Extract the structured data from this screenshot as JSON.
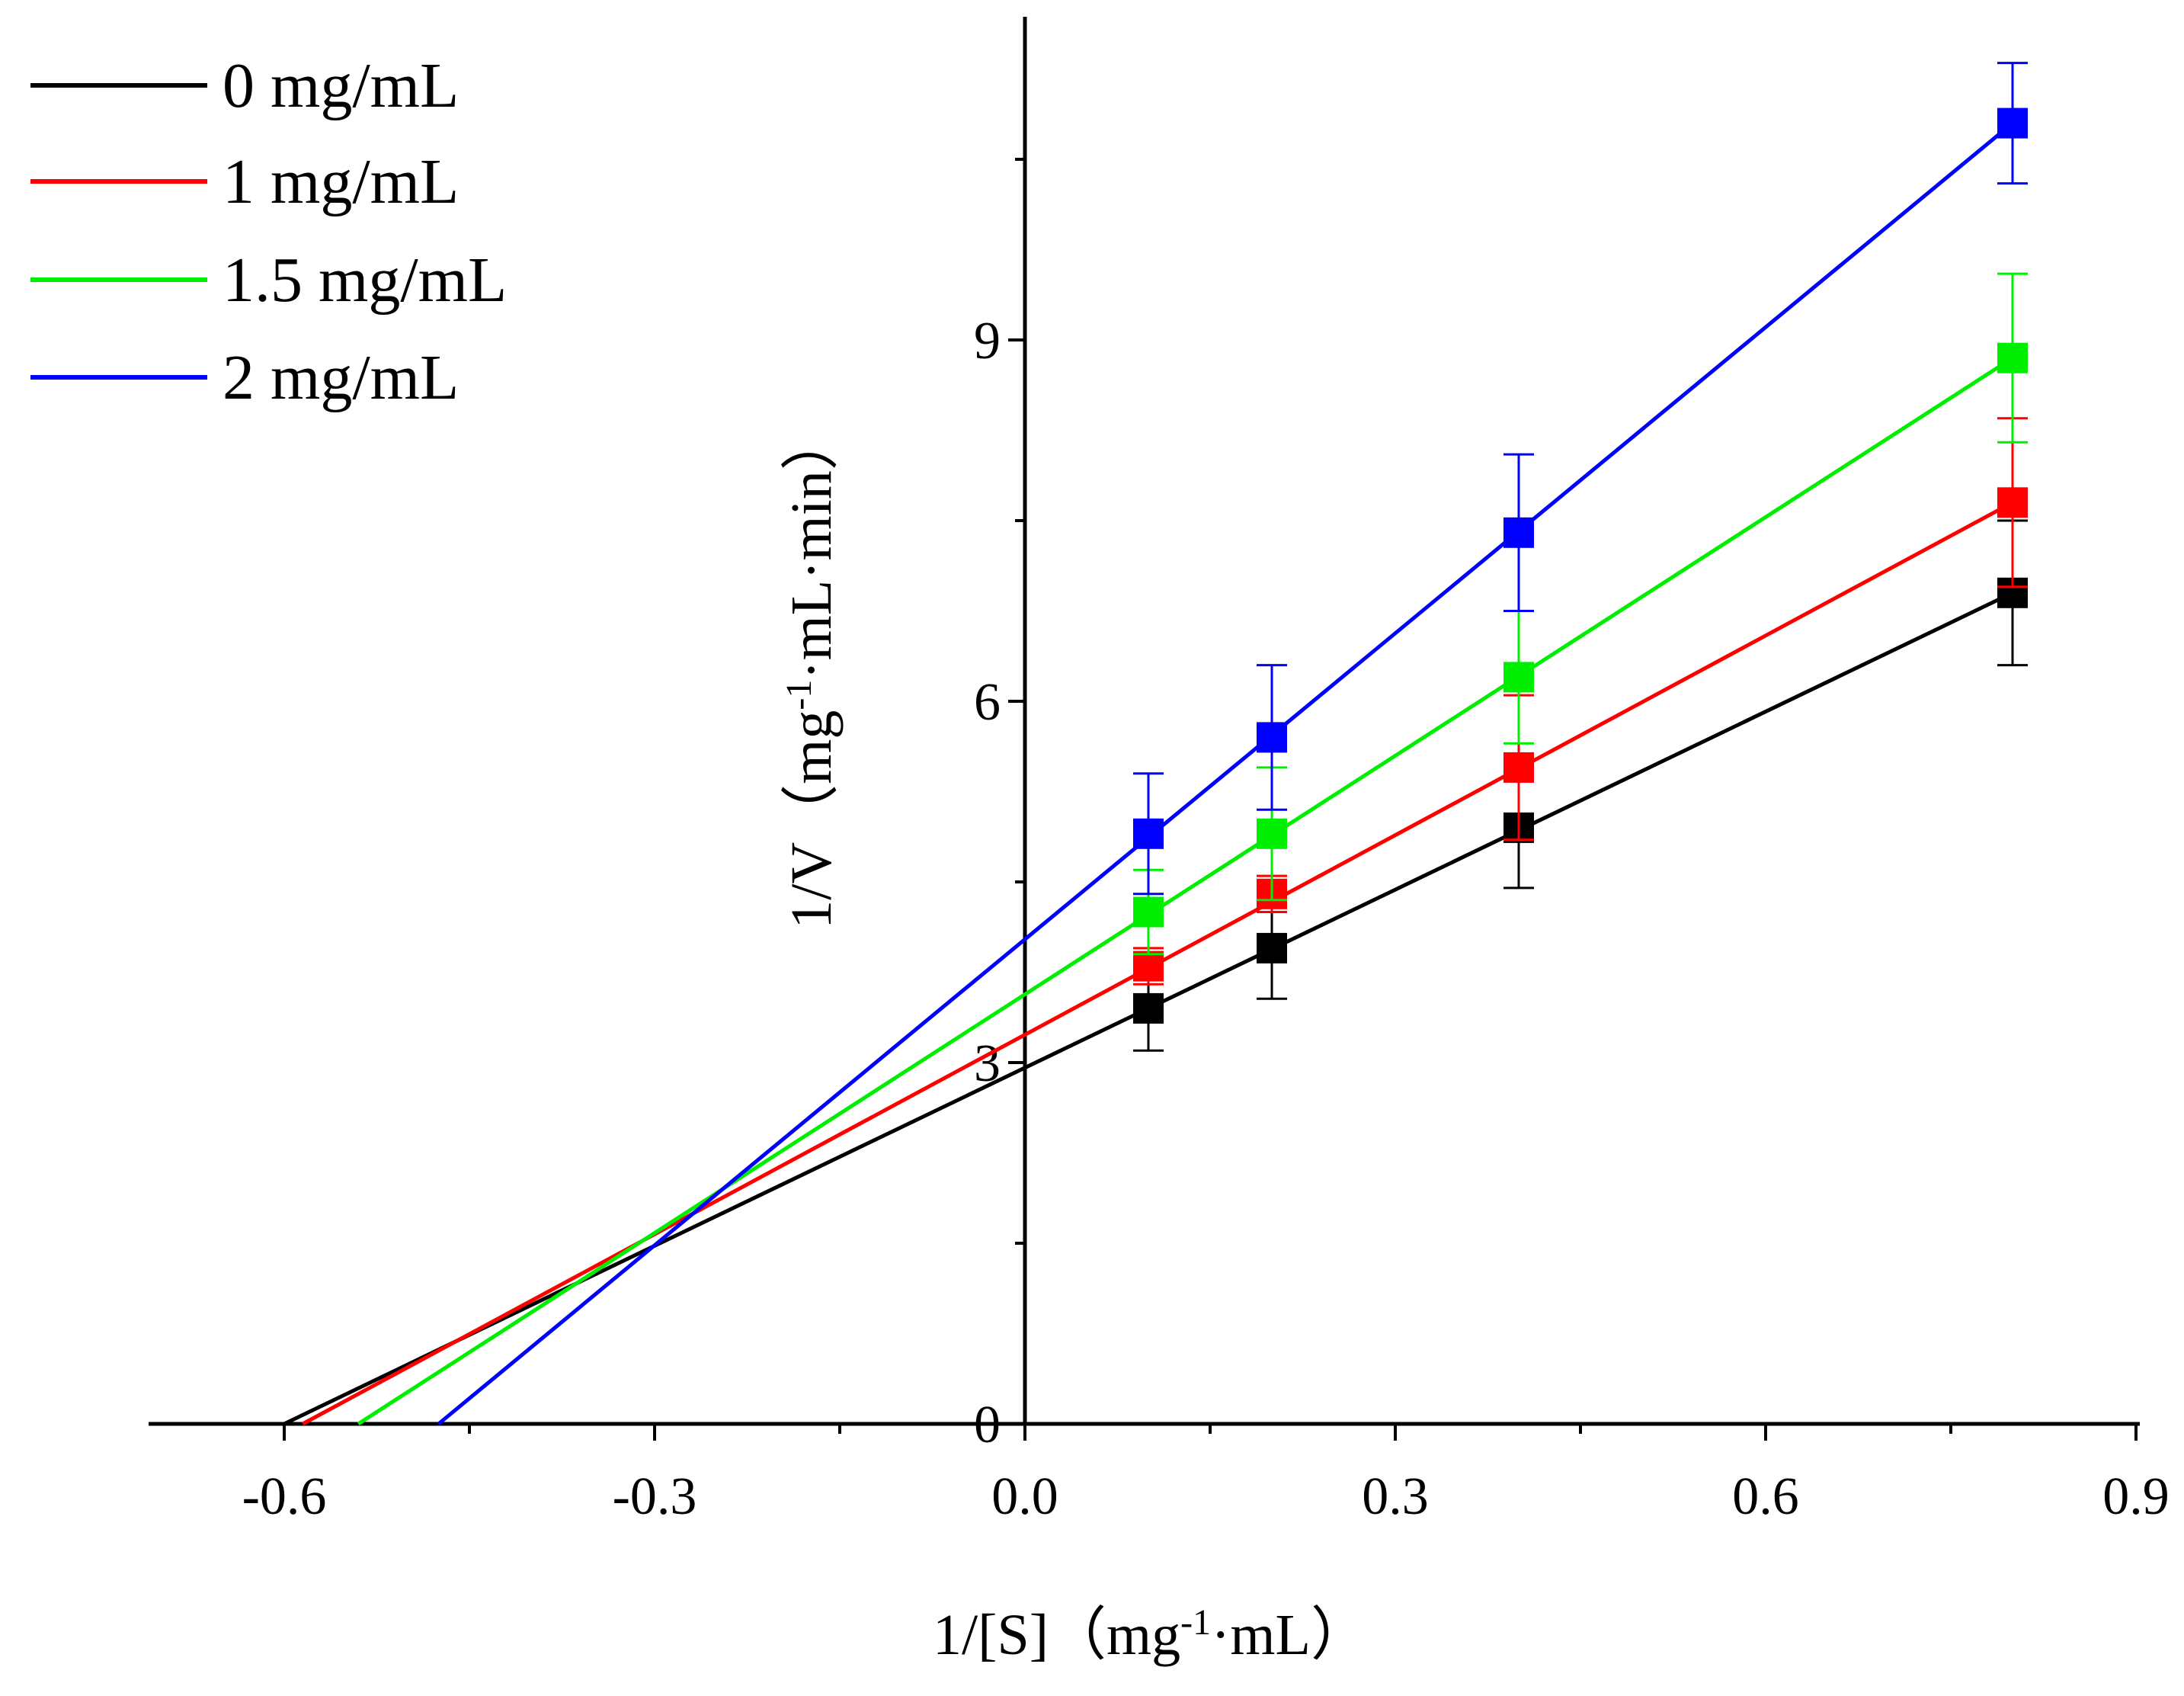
{
  "chart_data": {
    "type": "line",
    "title": "",
    "xlabel": {
      "main": "1/[S]",
      "paren_open": "（",
      "unit_pre": "mg",
      "unit_sup": "-1",
      "unit_post": "·mL",
      "paren_close": "）"
    },
    "ylabel": {
      "main": "1/V",
      "paren_open": "（",
      "unit_pre": "mg",
      "unit_sup": "-1",
      "unit_post": "·mL·min",
      "paren_close": "）"
    },
    "xlim": [
      -0.7,
      0.9
    ],
    "ylim": [
      0,
      11.8
    ],
    "x_ticks": [
      -0.6,
      -0.3,
      0.0,
      0.3,
      0.6,
      0.9
    ],
    "x_tick_labels": [
      "-0.6",
      "-0.3",
      "0.0",
      "0.3",
      "0.6",
      "0.9"
    ],
    "x_minor_ticks": [
      -0.45,
      -0.15,
      0.15,
      0.45,
      0.75
    ],
    "y_ticks": [
      0,
      3,
      6,
      9
    ],
    "y_tick_labels": [
      "0",
      "3",
      "6",
      "9"
    ],
    "y_minor_ticks": [
      1.5,
      4.5,
      7.5,
      10.5
    ],
    "legend_position": "top-left",
    "x": [
      0.1,
      0.2,
      0.4,
      0.8
    ],
    "series": [
      {
        "name": "0 mg/mL",
        "color": "#000000",
        "values": [
          3.45,
          3.95,
          4.95,
          6.9
        ],
        "errors": [
          0.35,
          0.42,
          0.5,
          0.6
        ],
        "fit": {
          "x_start": -0.6,
          "x_end": 0.8,
          "y_start": 0.0,
          "y_end": 6.9
        }
      },
      {
        "name": "1 mg/mL",
        "color": "#ff0000",
        "values": [
          3.8,
          4.4,
          5.45,
          7.65
        ],
        "errors": [
          0.15,
          0.15,
          0.6,
          0.7
        ],
        "fit": {
          "x_start": -0.585,
          "x_end": 0.8,
          "y_start": 0.0,
          "y_end": 7.65
        }
      },
      {
        "name": "1.5 mg/mL",
        "color": "#00ee00",
        "values": [
          4.25,
          4.9,
          6.2,
          8.85
        ],
        "errors": [
          0.35,
          0.55,
          0.55,
          0.7
        ],
        "fit": {
          "x_start": -0.54,
          "x_end": 0.8,
          "y_start": 0.0,
          "y_end": 8.85
        }
      },
      {
        "name": "2 mg/mL",
        "color": "#0000ff",
        "values": [
          4.9,
          5.7,
          7.4,
          10.8
        ],
        "errors": [
          0.5,
          0.6,
          0.65,
          0.5
        ],
        "fit": {
          "x_start": -0.475,
          "x_end": 0.8,
          "y_start": 0.0,
          "y_end": 10.8
        }
      }
    ]
  }
}
